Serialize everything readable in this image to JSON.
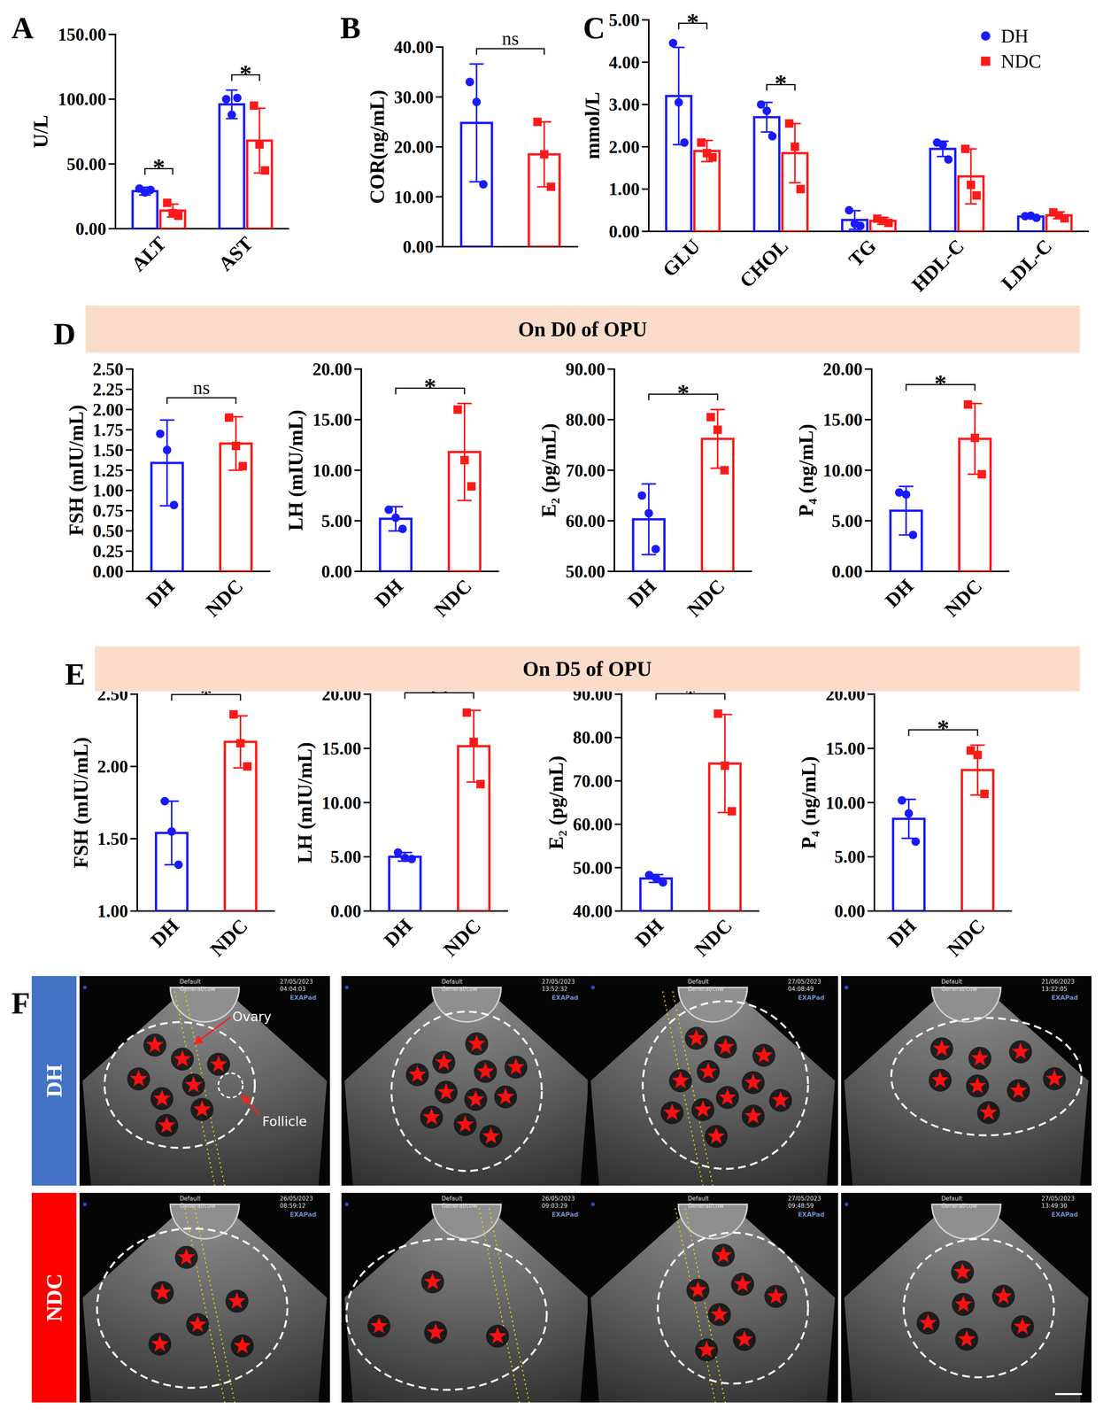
{
  "chart_data": [
    {
      "panel": "A",
      "type": "bar",
      "y_label": "U/L",
      "categories": [
        "ALT",
        "AST"
      ],
      "legend": "none",
      "series": [
        {
          "name": "DH",
          "color": "#1a1aff",
          "marker": "circle",
          "values": [
            29,
            96
          ],
          "errors": [
            3,
            11
          ],
          "points": [
            [
              31,
              28,
              30
            ],
            [
              100,
              88,
              101
            ]
          ]
        },
        {
          "name": "NDC",
          "color": "#ff1a1a",
          "marker": "square",
          "values": [
            14,
            68
          ],
          "errors": [
            5,
            25
          ],
          "points": [
            [
              20,
              12,
              10
            ],
            [
              95,
              65,
              45
            ]
          ]
        }
      ],
      "ylim": [
        0,
        150
      ],
      "yticks": [
        {
          "value": 0,
          "label": "0.00"
        },
        {
          "value": 50,
          "label": "50.00"
        },
        {
          "value": 100,
          "label": "100.00"
        },
        {
          "value": 150,
          "label": "150.00"
        }
      ],
      "significance": [
        "*",
        "*"
      ]
    },
    {
      "panel": "B",
      "type": "bar",
      "y_label": "COR(ng/mL)",
      "categories": [
        null,
        null
      ],
      "legend": "none",
      "series": [
        {
          "name": "DH",
          "color": "#1a1aff",
          "marker": "circle",
          "values": [
            24.8,
            null
          ],
          "errors": [
            11.8,
            null
          ],
          "points": [
            [
              33,
              29,
              12.5
            ],
            null
          ]
        },
        {
          "name": "NDC",
          "color": "#ff1a1a",
          "marker": "square",
          "values": [
            null,
            18.5
          ],
          "errors": [
            null,
            6.5
          ],
          "points": [
            null,
            [
              25,
              18.5,
              12
            ]
          ]
        }
      ],
      "ylim": [
        0,
        40
      ],
      "yticks": [
        {
          "value": 0,
          "label": "0.00"
        },
        {
          "value": 10,
          "label": "10.00"
        },
        {
          "value": 20,
          "label": "20.00"
        },
        {
          "value": 30,
          "label": "30.00"
        },
        {
          "value": 40,
          "label": "40.00"
        }
      ],
      "significance": "ns"
    },
    {
      "panel": "C",
      "type": "bar",
      "y_label": "mmol/L",
      "categories": [
        "GLU",
        "CHOL",
        "TG",
        "HDL-C",
        "LDL-C"
      ],
      "legend": "upper right",
      "series": [
        {
          "name": "DH",
          "color": "#1a1aff",
          "marker": "circle",
          "values": [
            3.2,
            2.7,
            0.27,
            1.95,
            0.35
          ],
          "errors": [
            1.15,
            0.35,
            0.22,
            0.18,
            0.04
          ],
          "points": [
            [
              4.45,
              3.05,
              2.1
            ],
            [
              3.0,
              2.85,
              2.25
            ],
            [
              0.5,
              0.18,
              0.13
            ],
            [
              2.1,
              2.05,
              1.7
            ],
            [
              0.36,
              0.37,
              0.32
            ]
          ]
        },
        {
          "name": "NDC",
          "color": "#ff1a1a",
          "marker": "square",
          "values": [
            1.9,
            1.85,
            0.25,
            1.3,
            0.38
          ],
          "errors": [
            0.25,
            0.7,
            0.08,
            0.65,
            0.08
          ],
          "points": [
            [
              2.1,
              1.85,
              1.75
            ],
            [
              2.55,
              2.0,
              1.0
            ],
            [
              0.3,
              0.25,
              0.2
            ],
            [
              1.95,
              1.1,
              0.85
            ],
            [
              0.45,
              0.38,
              0.31
            ]
          ]
        }
      ],
      "ylim": [
        0,
        5
      ],
      "yticks": [
        {
          "value": 0,
          "label": "0.00"
        },
        {
          "value": 1,
          "label": "1.00"
        },
        {
          "value": 2,
          "label": "2.00"
        },
        {
          "value": 3,
          "label": "3.00"
        },
        {
          "value": 4,
          "label": "4.00"
        },
        {
          "value": 5,
          "label": "5.00"
        }
      ],
      "significance": [
        "*",
        "*",
        null,
        null,
        null
      ]
    },
    {
      "type": "bar",
      "y_label": "FSH (mIU/mL)",
      "categories": [
        "DH",
        "NDC"
      ],
      "legend": "none",
      "series": [
        {
          "name": "DH",
          "color": "#1a1aff",
          "marker": "circle",
          "values": [
            1.34,
            null
          ],
          "errors": [
            0.53,
            null
          ],
          "points": [
            [
              1.7,
              1.5,
              0.82
            ],
            null
          ]
        },
        {
          "name": "NDC",
          "color": "#ff1a1a",
          "marker": "square",
          "values": [
            null,
            1.58
          ],
          "errors": [
            null,
            0.33
          ],
          "points": [
            null,
            [
              1.9,
              1.55,
              1.3
            ]
          ]
        }
      ],
      "ylim": [
        0,
        2.5
      ],
      "yticks": [
        {
          "value": 0,
          "label": "0.00"
        },
        {
          "value": 0.25,
          "label": "0.25"
        },
        {
          "value": 0.5,
          "label": "0.50"
        },
        {
          "value": 0.75,
          "label": "0.75"
        },
        {
          "value": 1,
          "label": "1.00"
        },
        {
          "value": 1.25,
          "label": "1.25"
        },
        {
          "value": 1.5,
          "label": "1.50"
        },
        {
          "value": 1.75,
          "label": "1.75"
        },
        {
          "value": 2,
          "label": "2.00"
        },
        {
          "value": 2.25,
          "label": "2.25"
        },
        {
          "value": 2.5,
          "label": "2.50"
        }
      ],
      "significance": "ns"
    },
    {
      "type": "bar",
      "y_label": "LH (mIU/mL)",
      "categories": [
        "DH",
        "NDC"
      ],
      "legend": "none",
      "series": [
        {
          "name": "DH",
          "color": "#1a1aff",
          "marker": "circle",
          "values": [
            5.2,
            null
          ],
          "errors": [
            1.2,
            null
          ],
          "points": [
            [
              6.1,
              5.3,
              4.2
            ],
            null
          ]
        },
        {
          "name": "NDC",
          "color": "#ff1a1a",
          "marker": "square",
          "values": [
            null,
            11.8
          ],
          "errors": [
            null,
            4.8
          ],
          "points": [
            null,
            [
              16,
              11,
              8.4
            ]
          ]
        }
      ],
      "ylim": [
        0,
        20
      ],
      "yticks": [
        {
          "value": 0,
          "label": "0.00"
        },
        {
          "value": 5,
          "label": "5.00"
        },
        {
          "value": 10,
          "label": "10.00"
        },
        {
          "value": 15,
          "label": "15.00"
        },
        {
          "value": 20,
          "label": "20.00"
        }
      ],
      "significance": "*"
    },
    {
      "type": "bar",
      "y_label": "E₂ (pg/mL)",
      "categories": [
        "DH",
        "NDC"
      ],
      "legend": "none",
      "series": [
        {
          "name": "DH",
          "color": "#1a1aff",
          "marker": "circle",
          "values": [
            60.3,
            null
          ],
          "errors": [
            7,
            null
          ],
          "points": [
            [
              65,
              61.5,
              54.4
            ],
            null
          ]
        },
        {
          "name": "NDC",
          "color": "#ff1a1a",
          "marker": "square",
          "values": [
            null,
            76.2
          ],
          "errors": [
            null,
            5.8
          ],
          "points": [
            null,
            [
              80.5,
              78,
              70
            ]
          ]
        }
      ],
      "ylim": [
        50,
        90
      ],
      "yticks": [
        {
          "value": 50,
          "label": "50.00"
        },
        {
          "value": 60,
          "label": "60.00"
        },
        {
          "value": 70,
          "label": "70.00"
        },
        {
          "value": 80,
          "label": "80.00"
        },
        {
          "value": 90,
          "label": "90.00"
        }
      ],
      "significance": "*"
    },
    {
      "type": "bar",
      "y_label": "P₄ (ng/mL)",
      "categories": [
        "DH",
        "NDC"
      ],
      "legend": "none",
      "series": [
        {
          "name": "DH",
          "color": "#1a1aff",
          "marker": "circle",
          "values": [
            6,
            null
          ],
          "errors": [
            2.4,
            null
          ],
          "points": [
            [
              7.8,
              7.6,
              3.6
            ],
            null
          ]
        },
        {
          "name": "NDC",
          "color": "#ff1a1a",
          "marker": "square",
          "values": [
            null,
            13.1
          ],
          "errors": [
            null,
            3.5
          ],
          "points": [
            null,
            [
              16.5,
              13.2,
              9.6
            ]
          ]
        }
      ],
      "ylim": [
        0,
        20
      ],
      "yticks": [
        {
          "value": 0,
          "label": "0.00"
        },
        {
          "value": 5,
          "label": "5.00"
        },
        {
          "value": 10,
          "label": "10.00"
        },
        {
          "value": 15,
          "label": "15.00"
        },
        {
          "value": 20,
          "label": "20.00"
        }
      ],
      "significance": "*"
    },
    {
      "type": "bar",
      "y_label": "FSH (mIU/mL)",
      "categories": [
        "DH",
        "NDC"
      ],
      "legend": "none",
      "series": [
        {
          "name": "DH",
          "color": "#1a1aff",
          "marker": "circle",
          "values": [
            1.54,
            null
          ],
          "errors": [
            0.22,
            null
          ],
          "points": [
            [
              1.76,
              1.55,
              1.32
            ],
            null
          ]
        },
        {
          "name": "NDC",
          "color": "#ff1a1a",
          "marker": "square",
          "values": [
            null,
            2.17
          ],
          "errors": [
            null,
            0.18
          ],
          "points": [
            null,
            [
              2.36,
              2.16,
              2.0
            ]
          ]
        }
      ],
      "ylim": [
        1,
        2.5
      ],
      "yticks": [
        {
          "value": 1,
          "label": "1.00"
        },
        {
          "value": 1.5,
          "label": "1.50"
        },
        {
          "value": 2,
          "label": "2.00"
        },
        {
          "value": 2.5,
          "label": "2.50"
        }
      ],
      "significance": "*"
    },
    {
      "type": "bar",
      "y_label": "LH (mIU/mL)",
      "categories": [
        "DH",
        "NDC"
      ],
      "legend": "none",
      "series": [
        {
          "name": "DH",
          "color": "#1a1aff",
          "marker": "circle",
          "values": [
            5.0,
            null
          ],
          "errors": [
            0.4,
            null
          ],
          "points": [
            [
              5.4,
              4.9,
              4.8
            ],
            null
          ]
        },
        {
          "name": "NDC",
          "color": "#ff1a1a",
          "marker": "square",
          "values": [
            null,
            15.2
          ],
          "errors": [
            null,
            3.3
          ],
          "points": [
            null,
            [
              18.3,
              15.6,
              11.7
            ]
          ]
        }
      ],
      "ylim": [
        0,
        20
      ],
      "yticks": [
        {
          "value": 0,
          "label": "0.00"
        },
        {
          "value": 5,
          "label": "5.00"
        },
        {
          "value": 10,
          "label": "10.00"
        },
        {
          "value": 15,
          "label": "15.00"
        },
        {
          "value": 20,
          "label": "20.00"
        }
      ],
      "significance": "**"
    },
    {
      "type": "bar",
      "y_label": "E₂ (pg/mL)",
      "categories": [
        "DH",
        "NDC"
      ],
      "legend": "none",
      "series": [
        {
          "name": "DH",
          "color": "#1a1aff",
          "marker": "circle",
          "values": [
            47.5,
            null
          ],
          "errors": [
            0.9,
            null
          ],
          "points": [
            [
              48.3,
              47.6,
              46.6
            ],
            null
          ]
        },
        {
          "name": "NDC",
          "color": "#ff1a1a",
          "marker": "square",
          "values": [
            null,
            74
          ],
          "errors": [
            null,
            11.3
          ],
          "points": [
            null,
            [
              85.5,
              73.5,
              63
            ]
          ]
        }
      ],
      "ylim": [
        40,
        90
      ],
      "yticks": [
        {
          "value": 40,
          "label": "40.00"
        },
        {
          "value": 50,
          "label": "50.00"
        },
        {
          "value": 60,
          "label": "60.00"
        },
        {
          "value": 70,
          "label": "70.00"
        },
        {
          "value": 80,
          "label": "80.00"
        },
        {
          "value": 90,
          "label": "90.00"
        }
      ],
      "significance": "*"
    },
    {
      "type": "bar",
      "y_label": "P₄ (ng/mL)",
      "categories": [
        "DH",
        "NDC"
      ],
      "legend": "none",
      "series": [
        {
          "name": "DH",
          "color": "#1a1aff",
          "marker": "circle",
          "values": [
            8.5,
            null
          ],
          "errors": [
            1.8,
            null
          ],
          "points": [
            [
              10.2,
              9.0,
              6.4
            ],
            null
          ]
        },
        {
          "name": "NDC",
          "color": "#ff1a1a",
          "marker": "square",
          "values": [
            null,
            13
          ],
          "errors": [
            null,
            2.3
          ],
          "points": [
            null,
            [
              14.8,
              14.4,
              10.8
            ]
          ]
        }
      ],
      "ylim": [
        0,
        20
      ],
      "yticks": [
        {
          "value": 0,
          "label": "0.00"
        },
        {
          "value": 5,
          "label": "5.00"
        },
        {
          "value": 10,
          "label": "10.00"
        },
        {
          "value": 15,
          "label": "15.00"
        },
        {
          "value": 20,
          "label": "20.00"
        }
      ],
      "significance": "*"
    }
  ],
  "sections": [
    {
      "label": "D",
      "title": "On D0 of OPU",
      "color": "#fbdccb"
    },
    {
      "label": "E",
      "title": "On D5 of OPU",
      "color": "#fbdccb"
    }
  ],
  "panel_f": {
    "label": "F",
    "rows": [
      {
        "group": "DH",
        "color": "#4472c4",
        "images": [
          {
            "header": [
              "Default",
              "General/cow"
            ],
            "date": "27/05/2023",
            "time": "04:04:03",
            "brand": "EXAPad",
            "follicles": 8,
            "annotations": [
              "Ovary",
              "Follicle"
            ]
          },
          {
            "header": [
              "Default",
              "General/cow"
            ],
            "date": "27/05/2023",
            "time": "13:52:32",
            "brand": "EXAPad",
            "follicles": 11
          },
          {
            "header": [
              "Default",
              "General/cow"
            ],
            "date": "27/05/2023",
            "time": "04:08:49",
            "brand": "EXAPad",
            "follicles": 12
          },
          {
            "header": [
              "Default",
              "General/cow"
            ],
            "date": "21/06/2023",
            "time": "13:22:05",
            "brand": "EXAPad",
            "follicles": 8
          }
        ]
      },
      {
        "group": "NDC",
        "color": "#ff0000",
        "images": [
          {
            "header": [
              "Default",
              "General/cow"
            ],
            "date": "26/05/2023",
            "time": "08:59:12",
            "brand": "EXAPad",
            "follicles": 6
          },
          {
            "header": [
              "Default",
              "General/cow"
            ],
            "date": "26/05/2023",
            "time": "09:03:29",
            "brand": "EXAPad",
            "follicles": 4
          },
          {
            "header": [
              "Default",
              "General/cow"
            ],
            "date": "27/05/2023",
            "time": "09:48:59",
            "brand": "EXAPad",
            "follicles": 7
          },
          {
            "header": [
              "Default",
              "General/cow"
            ],
            "date": "27/05/2023",
            "time": "13:49:30",
            "brand": "EXAPad",
            "follicles": 6
          }
        ]
      }
    ]
  }
}
